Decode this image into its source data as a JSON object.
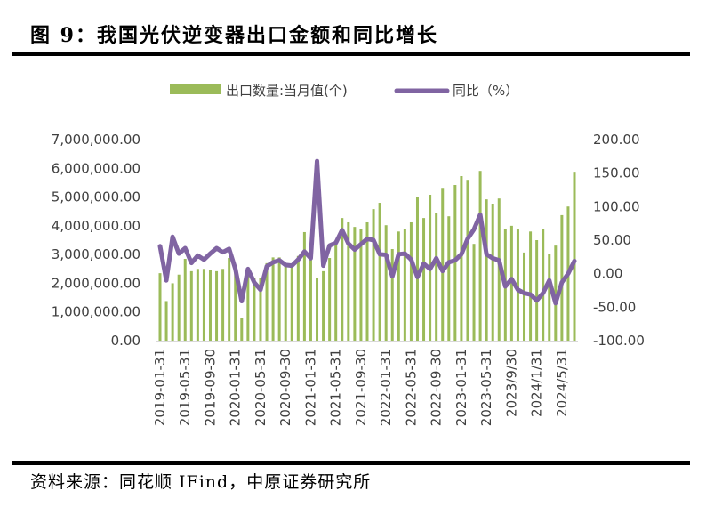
{
  "header": {
    "title": "图 9：我国光伏逆变器出口金额和同比增长"
  },
  "footer": {
    "source": "资料来源：同花顺 IFind，中原证券研究所"
  },
  "colors": {
    "bar": "#9BBB59",
    "line": "#8064A2",
    "axis": "#D9D9D9",
    "text": "#404040"
  },
  "chart_data": {
    "type": "bar+line",
    "title": "图 9：我国光伏逆变器出口金额和同比增长",
    "legend_position": "top",
    "legend": [
      "出口数量:当月值(个)",
      "同比（%）"
    ],
    "y_left": {
      "range": [
        0,
        7000000
      ],
      "ticks": [
        "0.00",
        "1,000,000.00",
        "2,000,000.00",
        "3,000,000.00",
        "4,000,000.00",
        "5,000,000.00",
        "6,000,000.00",
        "7,000,000.00"
      ],
      "tick_values": [
        0,
        1000000,
        2000000,
        3000000,
        4000000,
        5000000,
        6000000,
        7000000
      ]
    },
    "y_right": {
      "range": [
        -100,
        200
      ],
      "ticks": [
        "-100.00",
        "-50.00",
        "0.00",
        "50.00",
        "100.00",
        "150.00",
        "200.00"
      ],
      "tick_values": [
        -100,
        -50,
        0,
        50,
        100,
        150,
        200
      ]
    },
    "x_tick_labels": [
      {
        "index": 0,
        "label": "2019-01-31"
      },
      {
        "index": 4,
        "label": "2019-05-31"
      },
      {
        "index": 8,
        "label": "2019-09-30"
      },
      {
        "index": 12,
        "label": "2020-01-31"
      },
      {
        "index": 16,
        "label": "2020-05-31"
      },
      {
        "index": 20,
        "label": "2020-09-30"
      },
      {
        "index": 24,
        "label": "2021-01-31"
      },
      {
        "index": 28,
        "label": "2021-05-31"
      },
      {
        "index": 32,
        "label": "2021-09-30"
      },
      {
        "index": 36,
        "label": "2022-01-31"
      },
      {
        "index": 40,
        "label": "2022-05-31"
      },
      {
        "index": 44,
        "label": "2022-09-30"
      },
      {
        "index": 48,
        "label": "2023-01-31"
      },
      {
        "index": 52,
        "label": "2023-05-31"
      },
      {
        "index": 56,
        "label": "2023/9/30"
      },
      {
        "index": 60,
        "label": "2024/1/31"
      },
      {
        "index": 64,
        "label": "2024/5/31"
      }
    ],
    "series": [
      {
        "name": "出口数量:当月值(个)",
        "type": "bar",
        "axis": "left",
        "values": [
          2350000,
          1380000,
          2000000,
          2300000,
          2850000,
          2420000,
          2500000,
          2500000,
          2450000,
          2420000,
          2500000,
          2880000,
          2570000,
          800000,
          2400000,
          2200000,
          2170000,
          2700000,
          2900000,
          2900000,
          2700000,
          2600000,
          2950000,
          3780000,
          2850000,
          2170000,
          2420000,
          2880000,
          3400000,
          4270000,
          4120000,
          3960000,
          3900000,
          4120000,
          4580000,
          4800000,
          4020000,
          3190000,
          3800000,
          3900000,
          4120000,
          5000000,
          4270000,
          5080000,
          4430000,
          5320000,
          4330000,
          5420000,
          5730000,
          5600000,
          3370000,
          5910000,
          4920000,
          4770000,
          4950000,
          3900000,
          4000000,
          3870000,
          3070000,
          3800000,
          3500000,
          3900000,
          3030000,
          3310000,
          4370000,
          4670000,
          5880000
        ]
      },
      {
        "name": "同比（%）",
        "type": "line",
        "axis": "right",
        "values": [
          41,
          -10,
          55,
          30,
          38,
          16,
          27,
          21,
          30,
          38,
          32,
          37,
          7,
          -41,
          7,
          -13,
          -24,
          11,
          17,
          20,
          13,
          12,
          21,
          33,
          23,
          168,
          12,
          42,
          46,
          65,
          45,
          36,
          44,
          52,
          50,
          29,
          28,
          -4,
          29,
          30,
          21,
          -5,
          15,
          7,
          23,
          4,
          17,
          20,
          29,
          52,
          66,
          88,
          29,
          23,
          20,
          -19,
          -8,
          -24,
          -29,
          -31,
          -40,
          -29,
          -10,
          -44,
          -13,
          0,
          19
        ]
      }
    ]
  }
}
